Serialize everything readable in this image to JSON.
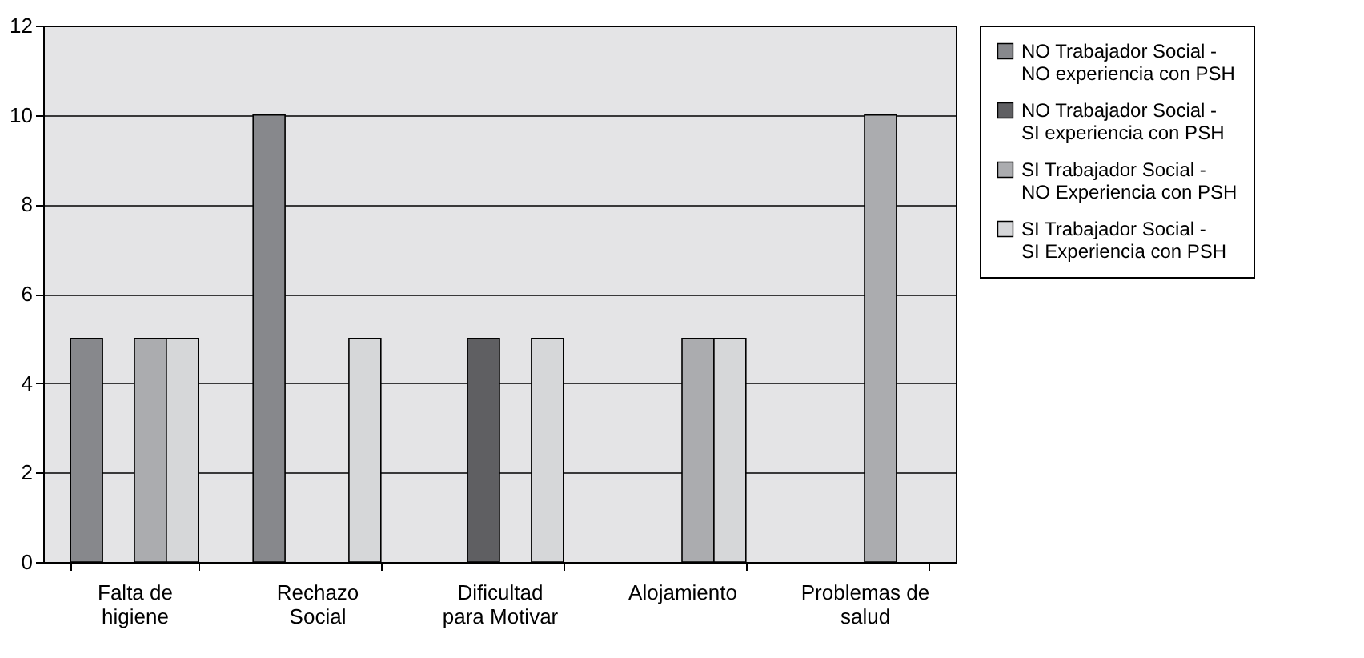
{
  "chart_data": {
    "type": "bar",
    "categories": [
      "Falta de higiene",
      "Rechazo Social",
      "Dificultad para Motivar",
      "Alojamiento",
      "Problemas de salud"
    ],
    "series": [
      {
        "name": "NO Trabajador Social - NO experiencia con PSH",
        "color": "#87888c",
        "values": [
          5,
          10,
          0,
          0,
          0
        ]
      },
      {
        "name": "NO Trabajador Social - SI experiencia con PSH",
        "color": "#5f5f62",
        "values": [
          0,
          0,
          5,
          0,
          0
        ]
      },
      {
        "name": "SI Trabajador Social - NO Experiencia con PSH",
        "color": "#abacaf",
        "values": [
          5,
          0,
          0,
          5,
          10
        ]
      },
      {
        "name": "SI Trabajador Social - SI Experiencia con PSH",
        "color": "#d6d7d9",
        "values": [
          5,
          5,
          5,
          5,
          0
        ]
      }
    ],
    "ylim": [
      0,
      12
    ],
    "yticks": [
      0,
      2,
      4,
      6,
      8,
      10,
      12
    ],
    "grid": "y",
    "legend": "right"
  }
}
